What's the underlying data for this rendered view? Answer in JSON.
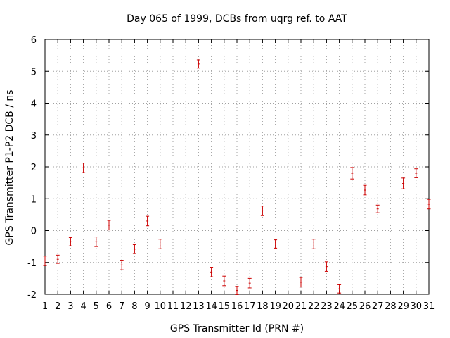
{
  "chart_data": {
    "type": "scatter",
    "title": "Day 065 of 1999, DCBs from uqrg ref. to AAT",
    "xlabel": "GPS Transmitter Id (PRN #)",
    "ylabel": "GPS Transmitter P1-P2 DCB / ns",
    "xlim": [
      1,
      31
    ],
    "ylim": [
      -2,
      6
    ],
    "x_ticks": [
      1,
      2,
      3,
      4,
      5,
      6,
      7,
      8,
      9,
      10,
      11,
      12,
      13,
      14,
      15,
      16,
      17,
      18,
      19,
      20,
      21,
      22,
      23,
      24,
      25,
      26,
      27,
      28,
      29,
      30,
      31
    ],
    "y_ticks": [
      -2,
      -1,
      0,
      1,
      2,
      3,
      4,
      5,
      6
    ],
    "grid": true,
    "marker_color": "#cc0000",
    "points": [
      {
        "x": 1,
        "y": -0.95,
        "err": 0.15
      },
      {
        "x": 2,
        "y": -0.9,
        "err": 0.13
      },
      {
        "x": 3,
        "y": -0.35,
        "err": 0.13
      },
      {
        "x": 4,
        "y": 1.97,
        "err": 0.15
      },
      {
        "x": 5,
        "y": -0.35,
        "err": 0.15
      },
      {
        "x": 6,
        "y": 0.17,
        "err": 0.15
      },
      {
        "x": 7,
        "y": -1.08,
        "err": 0.15
      },
      {
        "x": 8,
        "y": -0.58,
        "err": 0.14
      },
      {
        "x": 9,
        "y": 0.3,
        "err": 0.15
      },
      {
        "x": 10,
        "y": -0.42,
        "err": 0.15
      },
      {
        "x": 13,
        "y": 5.23,
        "err": 0.13
      },
      {
        "x": 14,
        "y": -1.3,
        "err": 0.15
      },
      {
        "x": 15,
        "y": -1.58,
        "err": 0.15
      },
      {
        "x": 16,
        "y": -1.88,
        "err": 0.13
      },
      {
        "x": 17,
        "y": -1.65,
        "err": 0.15
      },
      {
        "x": 18,
        "y": 0.62,
        "err": 0.15
      },
      {
        "x": 19,
        "y": -0.42,
        "err": 0.13
      },
      {
        "x": 21,
        "y": -1.62,
        "err": 0.15
      },
      {
        "x": 22,
        "y": -0.42,
        "err": 0.15
      },
      {
        "x": 23,
        "y": -1.13,
        "err": 0.15
      },
      {
        "x": 24,
        "y": -1.83,
        "err": 0.13
      },
      {
        "x": 25,
        "y": 1.8,
        "err": 0.18
      },
      {
        "x": 26,
        "y": 1.27,
        "err": 0.15
      },
      {
        "x": 27,
        "y": 0.68,
        "err": 0.12
      },
      {
        "x": 29,
        "y": 1.48,
        "err": 0.17
      },
      {
        "x": 30,
        "y": 1.8,
        "err": 0.14
      },
      {
        "x": 31,
        "y": 0.83,
        "err": 0.15
      }
    ]
  }
}
